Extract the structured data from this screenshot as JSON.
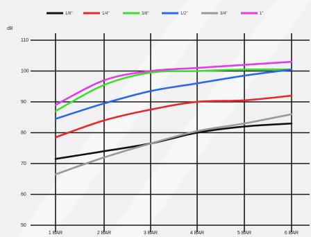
{
  "chart_data": {
    "type": "line",
    "y_unit": "dB",
    "categories": [
      "1 BAR",
      "2 BAR",
      "3 BAR",
      "4 BAR",
      "5 BAR",
      "6 BAR"
    ],
    "ylim": [
      50,
      110
    ],
    "yticks": [
      "110",
      "100",
      "90",
      "80",
      "70",
      "60",
      "50"
    ],
    "grid": true,
    "legend_position": "top",
    "series": [
      {
        "name": "1/8\"",
        "color": "#111111",
        "values": [
          71.5,
          74,
          76.5,
          80,
          82,
          83
        ]
      },
      {
        "name": "1/4\"",
        "color": "#e8262b",
        "values": [
          78.5,
          84,
          87.5,
          90,
          90.5,
          92
        ]
      },
      {
        "name": "3/8\"",
        "color": "#39e02a",
        "values": [
          87,
          95.5,
          99.5,
          100,
          100.5,
          100.5
        ]
      },
      {
        "name": "1/2\"",
        "color": "#2b68f0",
        "values": [
          84.5,
          89.5,
          93.5,
          96,
          98.5,
          100.5
        ]
      },
      {
        "name": "3/4\"",
        "color": "#999999",
        "values": [
          66.5,
          72,
          76.5,
          80.5,
          83,
          86
        ]
      },
      {
        "name": "1\"",
        "color": "#e03ce8",
        "values": [
          89,
          97,
          100,
          101,
          102,
          103
        ]
      }
    ]
  }
}
